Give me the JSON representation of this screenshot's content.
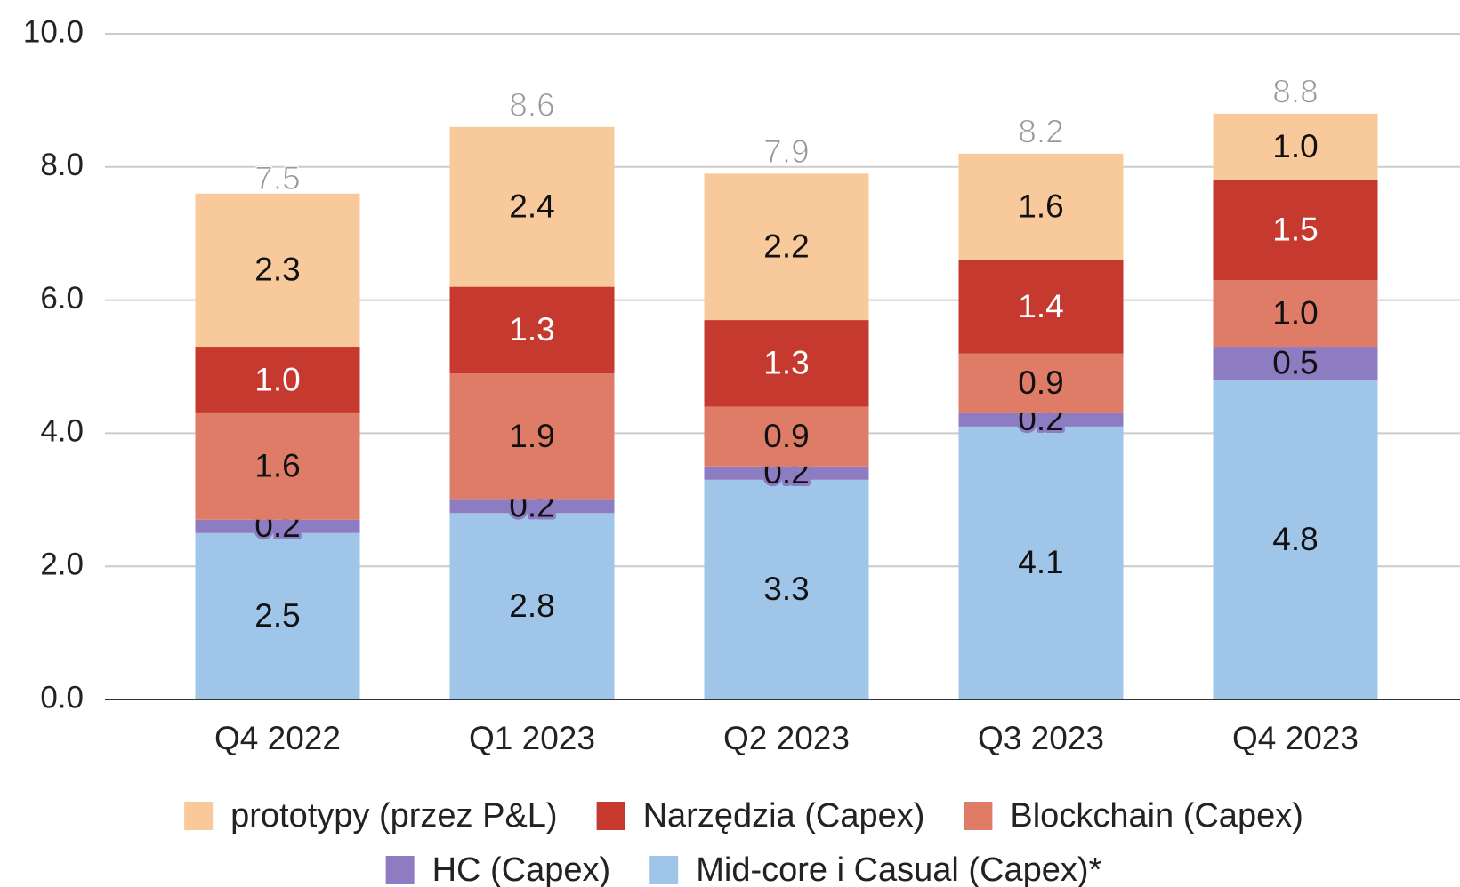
{
  "chart_data": {
    "type": "stacked-bar",
    "categories": [
      "Q4 2022",
      "Q1 2023",
      "Q2 2023",
      "Q3 2023",
      "Q4 2023"
    ],
    "series": [
      {
        "name": "prototypy (przez P&L)",
        "color": "#f8c99b",
        "values": [
          2.3,
          2.4,
          2.2,
          1.6,
          1.0
        ],
        "value_labels": [
          "2.3",
          "2.4",
          "2.2",
          "1.6",
          "1.0"
        ]
      },
      {
        "name": "Narzędzia (Capex)",
        "color": "#c5392f",
        "values": [
          1.0,
          1.3,
          1.3,
          1.4,
          1.5
        ],
        "value_labels": [
          "1.0",
          "1.3",
          "1.3",
          "1.4",
          "1.5"
        ]
      },
      {
        "name": "Blockchain (Capex)",
        "color": "#de7c68",
        "values": [
          1.6,
          1.9,
          0.9,
          0.9,
          1.0
        ],
        "value_labels": [
          "1.6",
          "1.9",
          "0.9",
          "0.9",
          "1.0"
        ]
      },
      {
        "name": "HC (Capex)",
        "color": "#8e7cc3",
        "values": [
          0.2,
          0.2,
          0.2,
          0.2,
          0.5
        ],
        "value_labels": [
          "0.2",
          "0.2",
          "0.2",
          "0.2",
          "0.5"
        ]
      },
      {
        "name": "Mid-core i Casual (Capex)*",
        "color": "#9fc5e8",
        "values": [
          2.5,
          2.8,
          3.3,
          4.1,
          4.8
        ],
        "value_labels": [
          "2.5",
          "2.8",
          "3.3",
          "4.1",
          "4.8"
        ]
      }
    ],
    "totals": [
      7.5,
      8.6,
      7.9,
      8.2,
      8.8
    ],
    "ylim": [
      0,
      10
    ],
    "yticks": [
      {
        "value": 0,
        "label": "0.0"
      },
      {
        "value": 2,
        "label": "2.0"
      },
      {
        "value": 4,
        "label": "4.0"
      },
      {
        "value": 6,
        "label": "6.0"
      },
      {
        "value": 8,
        "label": "8.0"
      },
      {
        "value": 10,
        "label": "10.0"
      }
    ],
    "grid": true,
    "legend": "bottom"
  }
}
